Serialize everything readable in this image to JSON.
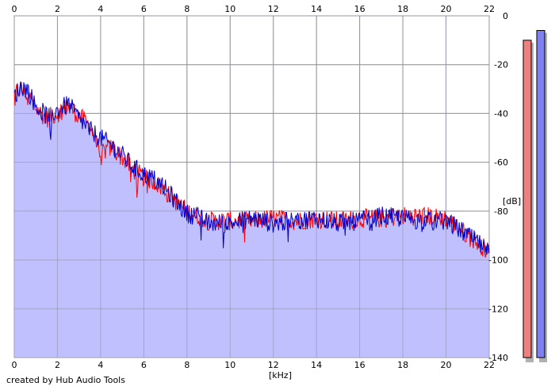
{
  "credit": "created by Hub Audio Tools",
  "chart_data": {
    "type": "area",
    "x_unit_label": "[kHz]",
    "y_unit_label": "[dB]",
    "xlim": [
      0,
      22
    ],
    "ylim": [
      -140,
      0
    ],
    "x_ticks": [
      0,
      2,
      4,
      6,
      8,
      10,
      12,
      14,
      16,
      18,
      20,
      22
    ],
    "y_ticks": [
      0,
      -20,
      -40,
      -60,
      -80,
      -100,
      -120,
      -140
    ],
    "grid": true,
    "fill_color": "#c0c0ff",
    "series": [
      {
        "color": "#ff0000",
        "x": [
          0,
          0.3,
          0.6,
          1.0,
          1.5,
          2.0,
          2.5,
          3.0,
          3.5,
          4.0,
          4.5,
          5.0,
          5.5,
          6.0,
          6.5,
          7.0,
          7.5,
          8.0,
          8.5,
          9.0,
          10.0,
          11.0,
          12.0,
          13.0,
          14.0,
          15.0,
          16.0,
          17.0,
          18.0,
          19.0,
          20.0,
          20.5,
          21.0,
          21.5,
          22.0
        ],
        "values": [
          -32,
          -30,
          -32,
          -38,
          -42,
          -40,
          -37,
          -41,
          -45,
          -56,
          -54,
          -58,
          -63,
          -66,
          -68,
          -72,
          -76,
          -80,
          -82,
          -84,
          -84,
          -84,
          -83,
          -84,
          -83,
          -84,
          -83,
          -83,
          -82,
          -82,
          -83,
          -86,
          -90,
          -93,
          -97
        ]
      },
      {
        "color": "#0000cc",
        "x": [
          0,
          0.3,
          0.6,
          1.0,
          1.5,
          2.0,
          2.5,
          3.0,
          3.5,
          4.0,
          4.5,
          5.0,
          5.5,
          6.0,
          6.5,
          7.0,
          7.5,
          8.0,
          8.5,
          9.0,
          10.0,
          11.0,
          12.0,
          13.0,
          14.0,
          15.0,
          16.0,
          17.0,
          18.0,
          19.0,
          20.0,
          20.5,
          21.0,
          21.5,
          22.0
        ],
        "values": [
          -33,
          -29,
          -30,
          -37,
          -41,
          -39,
          -36,
          -42,
          -47,
          -50,
          -53,
          -57,
          -62,
          -65,
          -67,
          -71,
          -76,
          -81,
          -82,
          -85,
          -85,
          -83,
          -85,
          -84,
          -83,
          -85,
          -84,
          -82,
          -83,
          -84,
          -84,
          -87,
          -90,
          -93,
          -98
        ]
      }
    ],
    "level_meters": [
      {
        "color": "#f08080",
        "level_db": -10
      },
      {
        "color": "#8080f0",
        "level_db": -6
      }
    ]
  }
}
